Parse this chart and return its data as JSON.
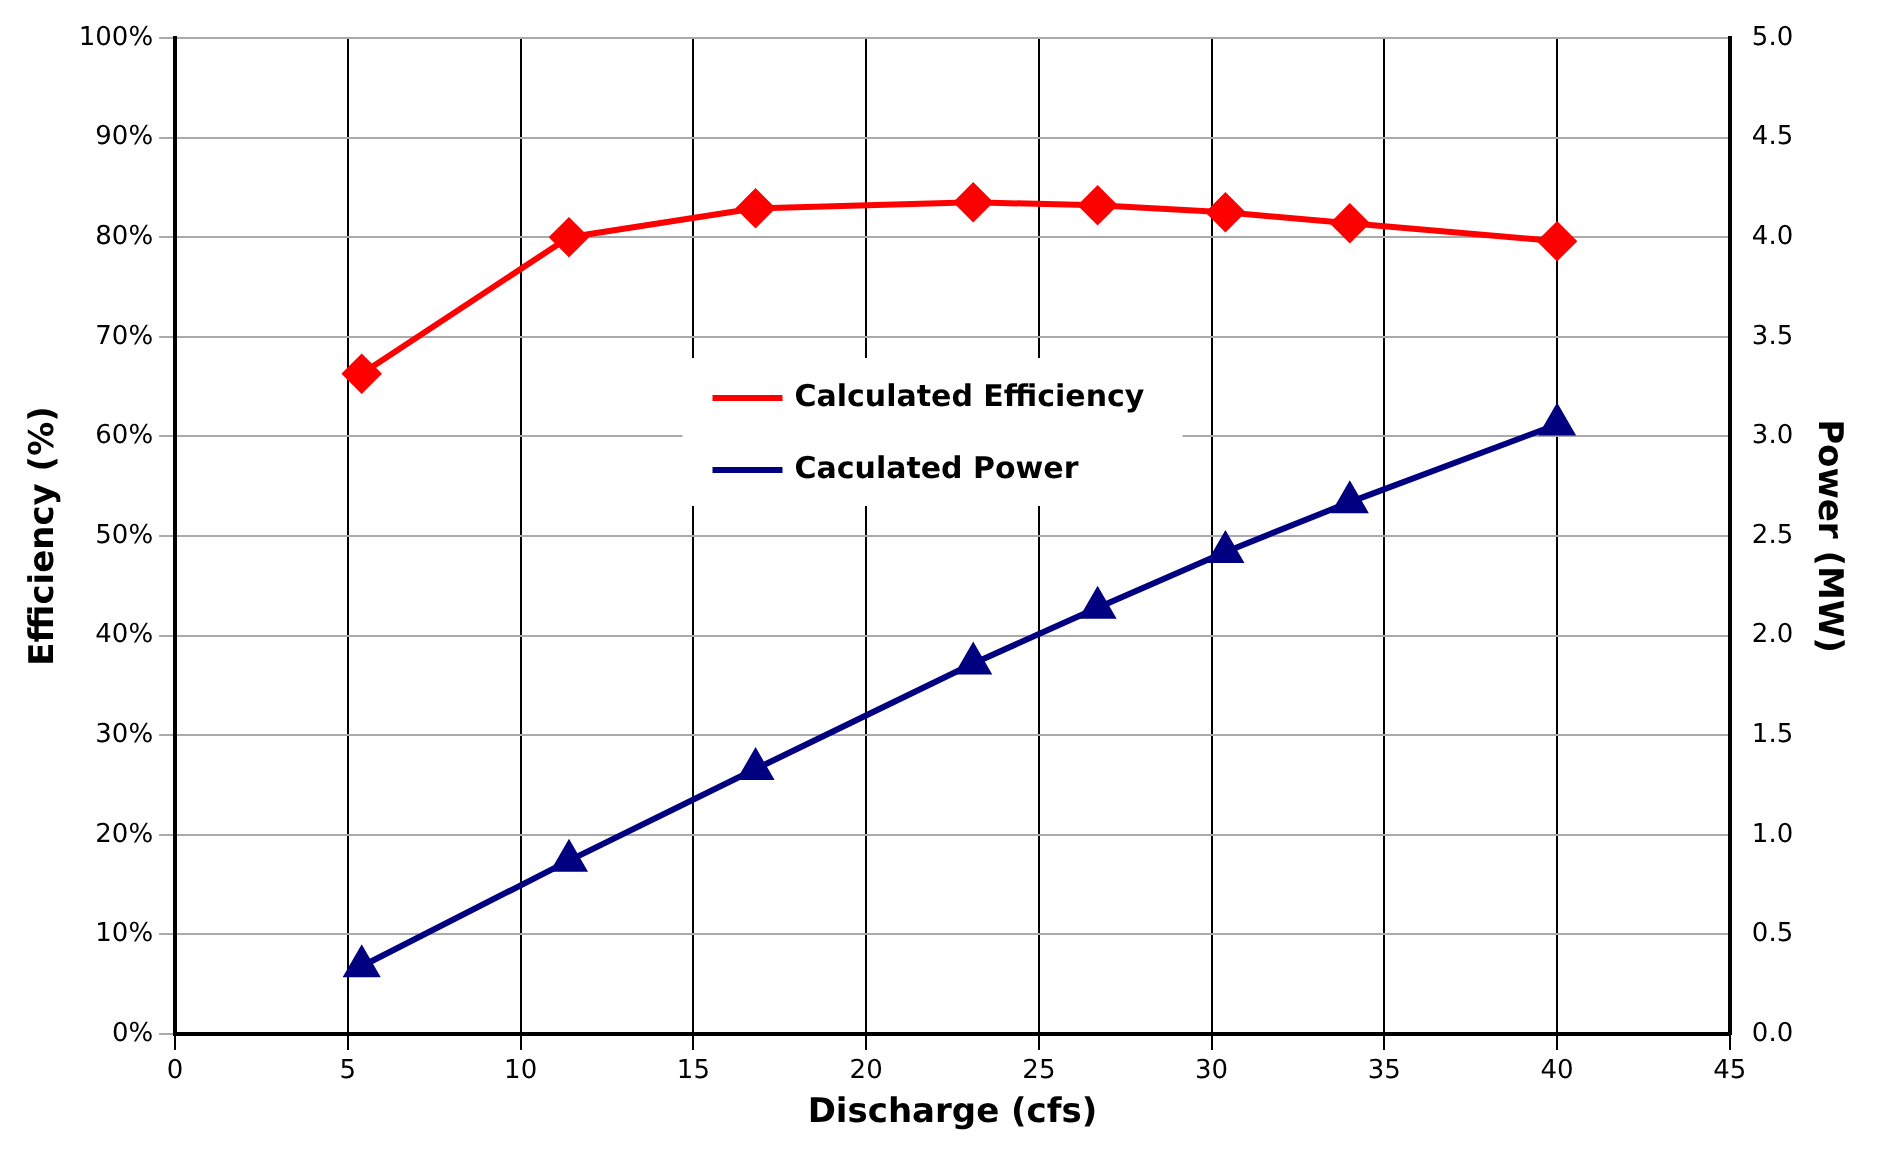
{
  "chart_data": {
    "type": "line",
    "xlabel": "Discharge (cfs)",
    "ylabel": "Efficiency (%)",
    "y2label": "Power (MW)",
    "xlim": [
      0,
      45
    ],
    "xticks": [
      0,
      5,
      10,
      15,
      20,
      25,
      30,
      35,
      40,
      45
    ],
    "ylim": [
      0,
      100
    ],
    "yticks": [
      {
        "value": 0,
        "label": "0%"
      },
      {
        "value": 10,
        "label": "10%"
      },
      {
        "value": 20,
        "label": "20%"
      },
      {
        "value": 30,
        "label": "30%"
      },
      {
        "value": 40,
        "label": "40%"
      },
      {
        "value": 50,
        "label": "50%"
      },
      {
        "value": 60,
        "label": "60%"
      },
      {
        "value": 70,
        "label": "70%"
      },
      {
        "value": 80,
        "label": "80%"
      },
      {
        "value": 90,
        "label": "90%"
      },
      {
        "value": 100,
        "label": "100%"
      }
    ],
    "y2lim": [
      0,
      5
    ],
    "y2ticks": [
      {
        "value": 0,
        "label": "0.0"
      },
      {
        "value": 0.5,
        "label": "0.5"
      },
      {
        "value": 1,
        "label": "1.0"
      },
      {
        "value": 1.5,
        "label": "1.5"
      },
      {
        "value": 2,
        "label": "2.0"
      },
      {
        "value": 2.5,
        "label": "2.5"
      },
      {
        "value": 3,
        "label": "3.0"
      },
      {
        "value": 3.5,
        "label": "3.5"
      },
      {
        "value": 4,
        "label": "4.0"
      },
      {
        "value": 4.5,
        "label": "4.5"
      },
      {
        "value": 5,
        "label": "5.0"
      }
    ],
    "x": [
      5.4,
      11.4,
      16.8,
      23.1,
      26.7,
      30.4,
      34.0,
      40.0
    ],
    "series": [
      {
        "name": "Calculated Efficiency",
        "color": "#ff0000",
        "marker": "diamond",
        "values": [
          66.3,
          80.0,
          82.9,
          83.5,
          83.2,
          82.5,
          81.4,
          79.6
        ]
      },
      {
        "name": "Caculated Power",
        "color": "#000080",
        "marker": "triangle",
        "axis": "y2",
        "values": [
          0.34,
          0.87,
          1.33,
          1.86,
          2.14,
          2.42,
          2.67,
          3.06
        ]
      }
    ],
    "grid": true,
    "legend": "center",
    "line_style": "solid"
  }
}
